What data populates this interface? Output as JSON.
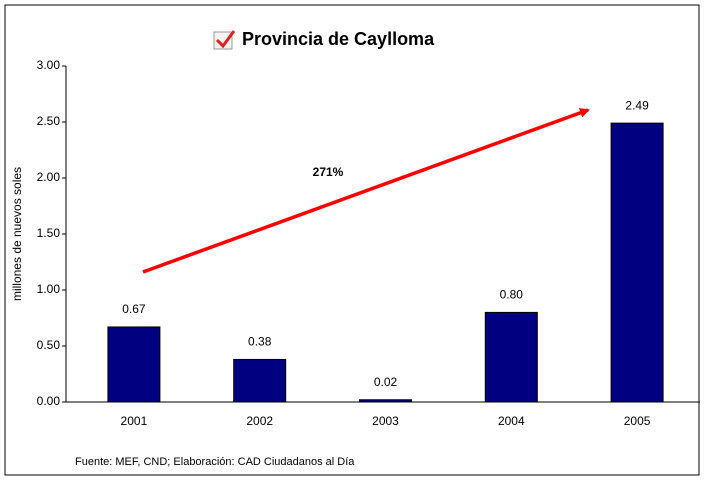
{
  "chart_data": {
    "type": "bar",
    "title": "Provincia de Caylloma",
    "y_label": "millones de nuevos soles",
    "categories": [
      "2001",
      "2002",
      "2003",
      "2004",
      "2005"
    ],
    "values": [
      0.67,
      0.38,
      0.02,
      0.8,
      2.49
    ],
    "value_labels": [
      "0.67",
      "0.38",
      "0.02",
      "0.80",
      "2.49"
    ],
    "color": "#000080",
    "ylim": [
      0,
      3
    ],
    "yticks": [
      {
        "value": 0,
        "label": "0.00"
      },
      {
        "value": 0.5,
        "label": "0.50"
      },
      {
        "value": 1,
        "label": "1.00"
      },
      {
        "value": 1.5,
        "label": "1.50"
      },
      {
        "value": 2,
        "label": "2.00"
      },
      {
        "value": 2.5,
        "label": "2.50"
      },
      {
        "value": 3,
        "label": "3.00"
      }
    ],
    "grid": false,
    "annotation": "271%",
    "source": "Fuente: MEF, CND; Elaboración: CAD Ciudadanos al Día"
  }
}
